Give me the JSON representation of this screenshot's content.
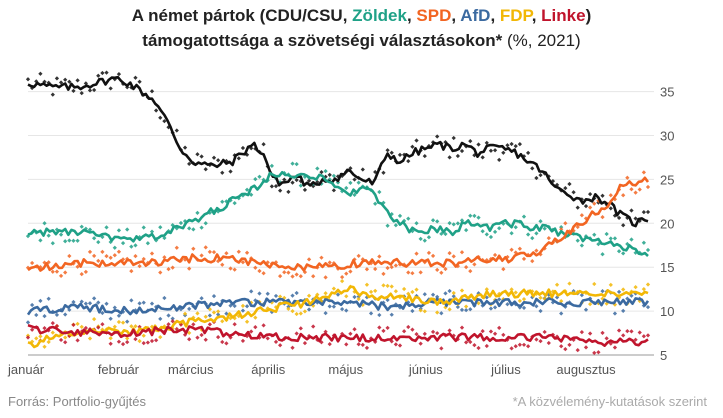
{
  "title": {
    "prefix": "A német pártok (",
    "parties": [
      {
        "text": "CDU/CSU",
        "color": "#222222"
      },
      {
        "text": ", ",
        "color": "#222222"
      },
      {
        "text": "Zöldek",
        "color": "#1fa187"
      },
      {
        "text": ", ",
        "color": "#222222"
      },
      {
        "text": "SPD",
        "color": "#f26522"
      },
      {
        "text": ", ",
        "color": "#222222"
      },
      {
        "text": "AfD",
        "color": "#3b6aa0"
      },
      {
        "text": ", ",
        "color": "#222222"
      },
      {
        "text": "FDP",
        "color": "#f2b705"
      },
      {
        "text": ", ",
        "color": "#222222"
      },
      {
        "text": "Linke",
        "color": "#c0142c"
      }
    ],
    "suffix": ")",
    "line2_bold": "támogatottsága a szövetségi választásokon*",
    "line2_rest": " (%, 2021)"
  },
  "footer": {
    "source": "Forrás: Portfolio-gyűjtés",
    "note": "*A közvélemény-kutatások szerint"
  },
  "chart_data": {
    "type": "line",
    "x_unit": "day of 2021 (1 = January 1)",
    "xlim": [
      1,
      241
    ],
    "ylim": [
      5,
      37
    ],
    "y_ticks": [
      5,
      10,
      15,
      20,
      25,
      30,
      35
    ],
    "y_axis_side": "right",
    "grid": "horizontal",
    "x_tick_labels": [
      {
        "label": "január",
        "day": 5
      },
      {
        "label": "február",
        "day": 36
      },
      {
        "label": "március",
        "day": 64
      },
      {
        "label": "április",
        "day": 94
      },
      {
        "label": "május",
        "day": 124
      },
      {
        "label": "június",
        "day": 155
      },
      {
        "label": "július",
        "day": 186
      },
      {
        "label": "augusztus",
        "day": 217
      }
    ],
    "points_shown": "individual polls as dots, moving average as line",
    "series": [
      {
        "name": "CDU/CSU",
        "color": "#111111",
        "x": [
          1,
          10,
          20,
          35,
          40,
          50,
          55,
          60,
          65,
          72,
          80,
          88,
          92,
          96,
          100,
          105,
          110,
          115,
          120,
          125,
          130,
          135,
          140,
          145,
          150,
          155,
          160,
          165,
          170,
          175,
          180,
          185,
          190,
          195,
          200,
          205,
          210,
          215,
          220,
          225,
          230,
          233,
          236,
          240
        ],
        "y": [
          36,
          35.5,
          35.5,
          36.5,
          36,
          34,
          31.5,
          28.5,
          27,
          26.5,
          27,
          29,
          28,
          25,
          24.5,
          25.5,
          24,
          25,
          25,
          26,
          25,
          24.5,
          28,
          27,
          28,
          28.5,
          29,
          28.5,
          29,
          28,
          28.5,
          28.5,
          28,
          27,
          26,
          24,
          23.5,
          22.5,
          23,
          22.5,
          21,
          20.5,
          20,
          20.5
        ]
      },
      {
        "name": "Zöldek",
        "color": "#1fa187",
        "x": [
          1,
          10,
          20,
          30,
          40,
          50,
          60,
          70,
          80,
          85,
          90,
          95,
          100,
          105,
          110,
          115,
          120,
          125,
          130,
          135,
          140,
          145,
          150,
          155,
          160,
          165,
          170,
          175,
          180,
          185,
          190,
          195,
          200,
          205,
          210,
          215,
          220,
          225,
          230,
          235,
          240
        ],
        "y": [
          19,
          19,
          19,
          18.5,
          18,
          18.5,
          19.5,
          21,
          22.5,
          23.5,
          24,
          25.5,
          26,
          25.5,
          25.5,
          25,
          24,
          23.5,
          24,
          23.5,
          21,
          20,
          19,
          19,
          19.5,
          19,
          20,
          20,
          19.5,
          20,
          20,
          19.5,
          19.5,
          19,
          18.5,
          18.5,
          18,
          17.5,
          17.5,
          17,
          16.5
        ]
      },
      {
        "name": "SPD",
        "color": "#f26522",
        "x": [
          1,
          10,
          20,
          30,
          40,
          50,
          60,
          70,
          80,
          90,
          100,
          110,
          120,
          130,
          140,
          150,
          160,
          170,
          180,
          190,
          200,
          205,
          210,
          215,
          220,
          225,
          230,
          235,
          240
        ],
        "y": [
          15,
          15,
          15.5,
          15.5,
          15.5,
          15.5,
          16,
          16,
          16,
          15.5,
          15,
          15,
          15,
          15.5,
          15.5,
          15.5,
          15.5,
          15.5,
          16,
          16,
          17,
          18,
          19,
          20,
          21,
          22,
          24,
          24.5,
          25
        ]
      },
      {
        "name": "AfD",
        "color": "#3b6aa0",
        "x": [
          1,
          20,
          40,
          60,
          80,
          100,
          120,
          140,
          160,
          180,
          200,
          220,
          240
        ],
        "y": [
          10,
          10.5,
          10,
          10.5,
          11,
          11,
          11,
          10.5,
          11,
          11,
          11,
          11,
          11
        ]
      },
      {
        "name": "FDP",
        "color": "#f2b705",
        "x": [
          1,
          10,
          20,
          30,
          40,
          50,
          60,
          70,
          80,
          90,
          100,
          110,
          120,
          125,
          130,
          135,
          140,
          145,
          150,
          160,
          170,
          180,
          190,
          200,
          210,
          220,
          230,
          240
        ],
        "y": [
          6,
          7,
          7.5,
          8,
          7.5,
          8,
          8.5,
          9,
          9.5,
          10,
          10.5,
          11,
          12,
          12.5,
          12,
          11.5,
          12,
          11.5,
          11.5,
          11,
          11.5,
          12,
          12,
          12,
          12,
          12,
          12,
          12
        ]
      },
      {
        "name": "Linke",
        "color": "#c0142c",
        "x": [
          1,
          20,
          40,
          60,
          80,
          100,
          120,
          140,
          160,
          180,
          200,
          220,
          240
        ],
        "y": [
          8,
          7.5,
          7.5,
          8,
          7.5,
          7,
          7,
          7,
          7,
          7,
          7,
          6.5,
          6.5
        ]
      }
    ]
  }
}
